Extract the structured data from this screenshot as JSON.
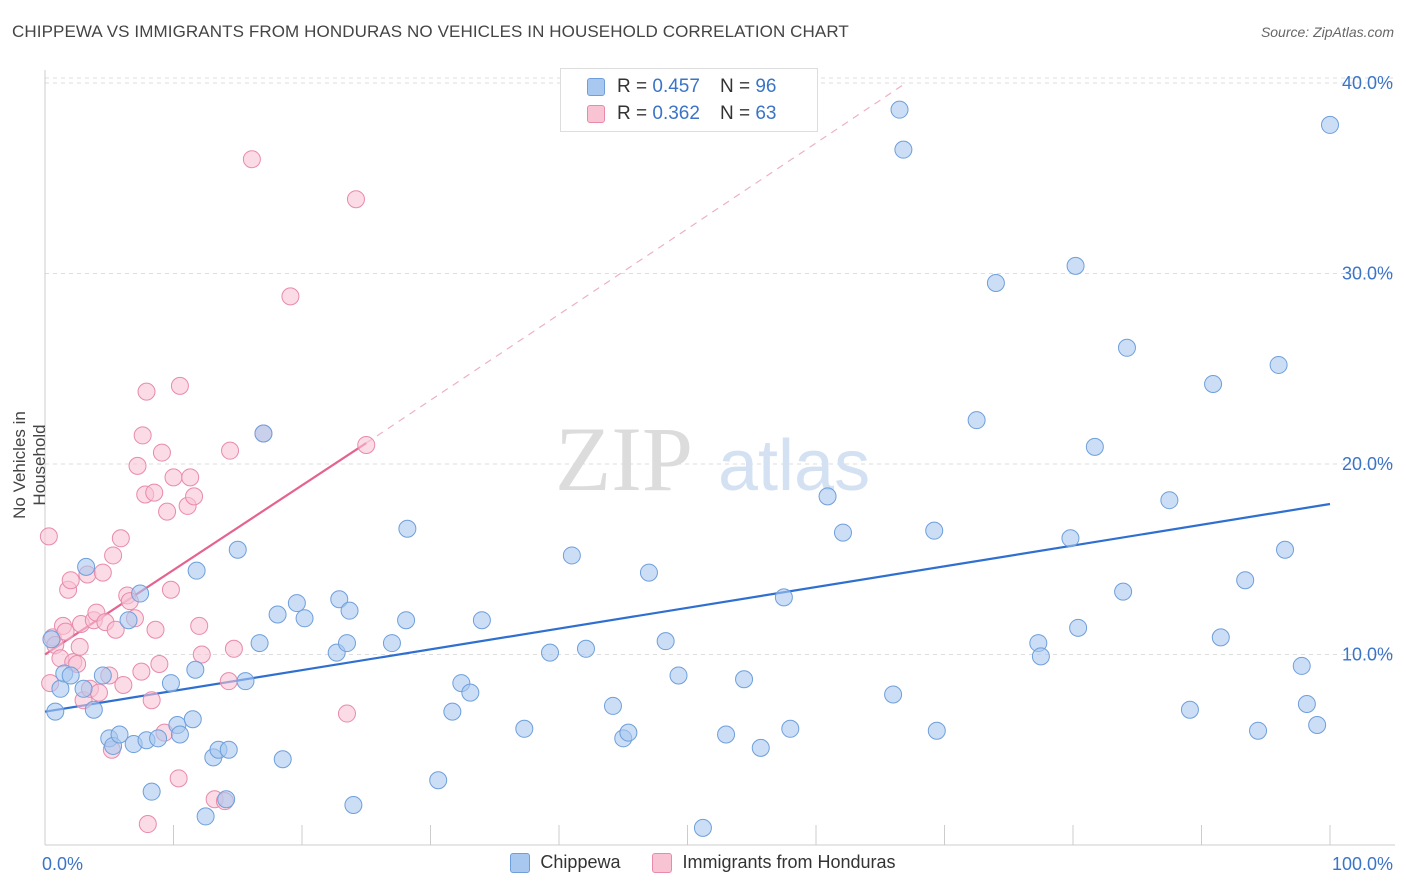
{
  "title": "CHIPPEWA VS IMMIGRANTS FROM HONDURAS NO VEHICLES IN HOUSEHOLD CORRELATION CHART",
  "source": "Source: ZipAtlas.com",
  "watermark": {
    "zip": "ZIP",
    "atlas": "atlas"
  },
  "stats": [
    {
      "r_label": "R =",
      "r_value": "0.457",
      "n_label": "N =",
      "n_value": "96",
      "color": "#a9c8f0",
      "border": "#6e9fdb"
    },
    {
      "r_label": "R =",
      "r_value": "0.362",
      "n_label": "N =",
      "n_value": "63",
      "color": "#f8c3d3",
      "border": "#e98aab"
    }
  ],
  "legend": [
    {
      "label": "Chippewa",
      "color": "#a9c8f0",
      "border": "#6e9fdb"
    },
    {
      "label": "Immigrants from Honduras",
      "color": "#f8c3d3",
      "border": "#e98aab"
    }
  ],
  "chart_data": {
    "type": "scatter",
    "title": "CHIPPEWA VS IMMIGRANTS FROM HONDURAS NO VEHICLES IN HOUSEHOLD CORRELATION CHART",
    "ylabel": "No Vehicles in Household",
    "xlabel": "",
    "xlim": [
      0,
      100
    ],
    "ylim": [
      0,
      41
    ],
    "x_tick_labels": [
      {
        "value": 0,
        "label": "0.0%"
      },
      {
        "value": 100,
        "label": "100.0%"
      }
    ],
    "y_tick_labels": [
      {
        "value": 10,
        "label": "10.0%"
      },
      {
        "value": 20,
        "label": "20.0%"
      },
      {
        "value": 30,
        "label": "30.0%"
      },
      {
        "value": 40,
        "label": "40.0%"
      }
    ],
    "grid": true,
    "legend_position": "bottom",
    "series": [
      {
        "name": "Chippewa",
        "color": "#a9c8f0",
        "stroke": "#6e9fdb",
        "trend": {
          "x": [
            0,
            100
          ],
          "y": [
            7.0,
            17.9
          ],
          "color": "#2f6fd0"
        },
        "points": [
          [
            0.5,
            10.8
          ],
          [
            0.8,
            7.0
          ],
          [
            1.2,
            8.2
          ],
          [
            1.5,
            9.0
          ],
          [
            2.0,
            8.9
          ],
          [
            3.0,
            8.2
          ],
          [
            3.2,
            14.6
          ],
          [
            3.8,
            7.1
          ],
          [
            4.5,
            8.9
          ],
          [
            5.0,
            5.6
          ],
          [
            5.3,
            5.2
          ],
          [
            5.8,
            5.8
          ],
          [
            6.5,
            11.8
          ],
          [
            6.9,
            5.3
          ],
          [
            7.4,
            13.2
          ],
          [
            7.9,
            5.5
          ],
          [
            8.3,
            2.8
          ],
          [
            8.8,
            5.6
          ],
          [
            9.8,
            8.5
          ],
          [
            10.3,
            6.3
          ],
          [
            10.5,
            5.8
          ],
          [
            11.5,
            6.6
          ],
          [
            11.7,
            9.2
          ],
          [
            11.8,
            14.4
          ],
          [
            12.5,
            1.5
          ],
          [
            13.1,
            4.6
          ],
          [
            13.5,
            5.0
          ],
          [
            14.1,
            2.4
          ],
          [
            14.3,
            5.0
          ],
          [
            15.0,
            15.5
          ],
          [
            15.6,
            8.6
          ],
          [
            16.7,
            10.6
          ],
          [
            17.0,
            21.6
          ],
          [
            18.1,
            12.1
          ],
          [
            18.5,
            4.5
          ],
          [
            19.6,
            12.7
          ],
          [
            20.2,
            11.9
          ],
          [
            22.7,
            10.1
          ],
          [
            22.9,
            12.9
          ],
          [
            23.5,
            10.6
          ],
          [
            23.7,
            12.3
          ],
          [
            24.0,
            2.1
          ],
          [
            27.0,
            10.6
          ],
          [
            28.1,
            11.8
          ],
          [
            28.2,
            16.6
          ],
          [
            30.6,
            3.4
          ],
          [
            31.7,
            7.0
          ],
          [
            32.4,
            8.5
          ],
          [
            33.1,
            8.0
          ],
          [
            34.0,
            11.8
          ],
          [
            37.3,
            6.1
          ],
          [
            39.3,
            10.1
          ],
          [
            41.0,
            15.2
          ],
          [
            42.1,
            10.3
          ],
          [
            44.2,
            7.3
          ],
          [
            45.0,
            5.6
          ],
          [
            45.4,
            5.9
          ],
          [
            47.0,
            14.3
          ],
          [
            48.3,
            10.7
          ],
          [
            49.3,
            8.9
          ],
          [
            51.2,
            0.9
          ],
          [
            53.0,
            5.8
          ],
          [
            54.4,
            8.7
          ],
          [
            55.7,
            5.1
          ],
          [
            57.5,
            13.0
          ],
          [
            58.0,
            6.1
          ],
          [
            60.9,
            18.3
          ],
          [
            62.1,
            16.4
          ],
          [
            66.0,
            7.9
          ],
          [
            66.5,
            38.6
          ],
          [
            66.8,
            36.5
          ],
          [
            69.2,
            16.5
          ],
          [
            69.4,
            6.0
          ],
          [
            72.5,
            22.3
          ],
          [
            74.0,
            29.5
          ],
          [
            77.3,
            10.6
          ],
          [
            77.5,
            9.9
          ],
          [
            79.8,
            16.1
          ],
          [
            80.2,
            30.4
          ],
          [
            80.4,
            11.4
          ],
          [
            81.7,
            20.9
          ],
          [
            83.9,
            13.3
          ],
          [
            84.2,
            26.1
          ],
          [
            87.5,
            18.1
          ],
          [
            89.1,
            7.1
          ],
          [
            90.9,
            24.2
          ],
          [
            91.5,
            10.9
          ],
          [
            93.4,
            13.9
          ],
          [
            94.4,
            6.0
          ],
          [
            96.0,
            25.2
          ],
          [
            96.5,
            15.5
          ],
          [
            97.8,
            9.4
          ],
          [
            98.2,
            7.4
          ],
          [
            99.0,
            6.3
          ],
          [
            100.0,
            37.8
          ]
        ]
      },
      {
        "name": "Immigrants from Honduras",
        "color": "#f8c3d3",
        "stroke": "#e98aab",
        "trend": {
          "x": [
            0,
            25
          ],
          "y": [
            10.0,
            21.1
          ],
          "color": "#e46390",
          "dashed_extension": {
            "x": [
              25,
              67
            ],
            "y": [
              21.1,
              40.0
            ]
          }
        },
        "points": [
          [
            0.3,
            16.2
          ],
          [
            0.4,
            8.5
          ],
          [
            0.6,
            10.9
          ],
          [
            0.8,
            10.5
          ],
          [
            1.2,
            9.8
          ],
          [
            1.4,
            11.5
          ],
          [
            1.6,
            11.2
          ],
          [
            1.8,
            13.4
          ],
          [
            2.0,
            13.9
          ],
          [
            2.2,
            9.6
          ],
          [
            2.5,
            9.5
          ],
          [
            2.7,
            10.4
          ],
          [
            2.8,
            11.6
          ],
          [
            3.0,
            7.6
          ],
          [
            3.3,
            14.2
          ],
          [
            3.5,
            8.2
          ],
          [
            3.8,
            11.8
          ],
          [
            4.0,
            12.2
          ],
          [
            4.2,
            8.0
          ],
          [
            4.5,
            14.3
          ],
          [
            4.7,
            11.7
          ],
          [
            5.0,
            8.9
          ],
          [
            5.2,
            5.0
          ],
          [
            5.3,
            15.2
          ],
          [
            5.5,
            11.3
          ],
          [
            5.9,
            16.1
          ],
          [
            6.1,
            8.4
          ],
          [
            6.4,
            13.1
          ],
          [
            6.6,
            12.8
          ],
          [
            7.0,
            11.9
          ],
          [
            7.2,
            19.9
          ],
          [
            7.5,
            9.1
          ],
          [
            7.6,
            21.5
          ],
          [
            7.8,
            18.4
          ],
          [
            7.9,
            23.8
          ],
          [
            8.0,
            1.1
          ],
          [
            8.3,
            7.6
          ],
          [
            8.5,
            18.5
          ],
          [
            8.6,
            11.3
          ],
          [
            8.9,
            9.5
          ],
          [
            9.1,
            20.6
          ],
          [
            9.3,
            5.9
          ],
          [
            9.5,
            17.5
          ],
          [
            9.8,
            13.4
          ],
          [
            10.0,
            19.3
          ],
          [
            10.4,
            3.5
          ],
          [
            10.5,
            24.1
          ],
          [
            11.1,
            17.8
          ],
          [
            11.3,
            19.3
          ],
          [
            11.6,
            18.3
          ],
          [
            12.0,
            11.5
          ],
          [
            12.2,
            10.0
          ],
          [
            13.2,
            2.4
          ],
          [
            14.0,
            2.3
          ],
          [
            14.3,
            8.6
          ],
          [
            14.4,
            20.7
          ],
          [
            14.7,
            10.3
          ],
          [
            16.1,
            36.0
          ],
          [
            17.0,
            21.6
          ],
          [
            19.1,
            28.8
          ],
          [
            23.5,
            6.9
          ],
          [
            24.2,
            33.9
          ],
          [
            25.0,
            21.0
          ]
        ]
      }
    ]
  }
}
